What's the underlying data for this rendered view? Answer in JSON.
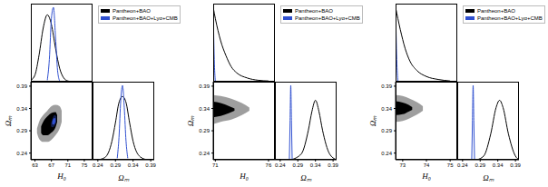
{
  "chart_data": [
    {
      "type": "corner",
      "legend": "upper right",
      "x_label": "H₀",
      "y_label": "Ωₘ",
      "xlim": [
        62,
        77
      ],
      "xticks": [
        63,
        67,
        71,
        75
      ],
      "ylim": [
        0.225,
        0.4
      ],
      "yticks": [
        0.24,
        0.29,
        0.34,
        0.39
      ],
      "series": [
        {
          "name": "Pantheon+BAO",
          "color": "#000000",
          "x_posterior": {
            "x": [
              62,
              63,
              64,
              65,
              66,
              67,
              68,
              69,
              70,
              71,
              72
            ],
            "values": [
              0.02,
              0.09,
              0.36,
              0.72,
              0.9,
              0.77,
              0.45,
              0.18,
              0.05,
              0.01,
              0
            ]
          },
          "y_posterior": {
            "x": [
              0.24,
              0.26,
              0.28,
              0.29,
              0.3,
              0.31,
              0.32,
              0.33,
              0.34,
              0.36,
              0.38
            ],
            "values": [
              0,
              0.03,
              0.25,
              0.5,
              0.77,
              0.85,
              0.77,
              0.5,
              0.25,
              0.04,
              0
            ]
          },
          "contours": [
            {
              "x": [
                63.5,
                64,
                65,
                66,
                67,
                68,
                69,
                69.5
              ],
              "low": [
                0.285,
                0.272,
                0.265,
                0.265,
                0.27,
                0.28,
                0.295,
                0.31
              ],
              "high": [
                0.295,
                0.31,
                0.325,
                0.335,
                0.345,
                0.348,
                0.345,
                0.335
              ]
            },
            {
              "x": [
                64.5,
                65,
                66,
                67,
                68,
                68.4
              ],
              "low": [
                0.285,
                0.28,
                0.28,
                0.286,
                0.298,
                0.31
              ],
              "high": [
                0.3,
                0.31,
                0.322,
                0.33,
                0.332,
                0.325
              ]
            }
          ]
        },
        {
          "name": "Pantheon+BAO+Lyα+CMB",
          "color": "#3050d0",
          "x_posterior": {
            "x": [
              66,
              66.5,
              67,
              67.5,
              68,
              68.5,
              69
            ],
            "values": [
              0.02,
              0.3,
              0.85,
              1.0,
              0.6,
              0.15,
              0.01
            ]
          },
          "y_posterior": {
            "x": [
              0.295,
              0.3,
              0.305,
              0.31,
              0.315,
              0.32,
              0.325
            ],
            "values": [
              0.02,
              0.3,
              0.8,
              1.0,
              0.7,
              0.25,
              0.02
            ]
          },
          "contours": [
            {
              "x": [
                66.9,
                67.3,
                67.8,
                68.2
              ],
              "low": [
                0.3,
                0.298,
                0.302,
                0.31
              ],
              "high": [
                0.305,
                0.318,
                0.325,
                0.322
              ]
            },
            {
              "x": [
                67.2,
                67.6,
                68.0
              ],
              "low": [
                0.305,
                0.304,
                0.31
              ],
              "high": [
                0.31,
                0.318,
                0.318
              ]
            }
          ]
        }
      ]
    },
    {
      "type": "corner",
      "legend": "upper right",
      "x_label": "H₀",
      "y_label": "Ωₘ",
      "xlim": [
        70.8,
        76.6
      ],
      "xticks": [
        71,
        76
      ],
      "ylim": [
        0.225,
        0.4
      ],
      "yticks": [
        0.24,
        0.29,
        0.34,
        0.39
      ],
      "series": [
        {
          "name": "Pantheon+BAO",
          "color": "#000000",
          "x_posterior": {
            "x": [
              70.8,
              71,
              71.5,
              72,
              72.5,
              73,
              74,
              75,
              76
            ],
            "values": [
              1.0,
              0.85,
              0.55,
              0.35,
              0.2,
              0.12,
              0.05,
              0.02,
              0.01
            ]
          },
          "y_posterior": {
            "x": [
              0.27,
              0.3,
              0.32,
              0.33,
              0.34,
              0.35,
              0.36,
              0.38,
              0.4
            ],
            "values": [
              0,
              0.08,
              0.4,
              0.65,
              0.8,
              0.65,
              0.4,
              0.08,
              0
            ]
          },
          "contours": [
            {
              "x": [
                70.8,
                71.5,
                72.5,
                73.5,
                74.2
              ],
              "low": [
                0.305,
                0.31,
                0.315,
                0.325,
                0.335
              ],
              "high": [
                0.37,
                0.368,
                0.362,
                0.352,
                0.342
              ]
            },
            {
              "x": [
                70.8,
                71.5,
                72.3,
                72.8
              ],
              "low": [
                0.32,
                0.323,
                0.33,
                0.335
              ],
              "high": [
                0.355,
                0.352,
                0.345,
                0.34
              ]
            }
          ]
        },
        {
          "name": "Pantheon+BAO+Lyα+CMB",
          "color": "#3050d0",
          "x_posterior": {
            "x": [
              70.8,
              70.9,
              71.0
            ],
            "values": [
              1.0,
              0.3,
              0
            ]
          },
          "y_posterior": {
            "x": [
              0.266,
              0.268,
              0.27,
              0.272,
              0.274
            ],
            "values": [
              0,
              0.5,
              1.0,
              0.5,
              0
            ]
          }
        }
      ]
    },
    {
      "type": "corner",
      "legend": "upper right",
      "x_label": "H₀",
      "y_label": "Ωₘ",
      "xlim": [
        72.7,
        75.3
      ],
      "xticks": [
        73,
        74,
        75
      ],
      "ylim": [
        0.225,
        0.4
      ],
      "yticks": [
        0.24,
        0.29,
        0.34,
        0.39
      ],
      "series": [
        {
          "name": "Pantheon+BAO",
          "color": "#000000",
          "x_posterior": {
            "x": [
              72.7,
              72.9,
              73.1,
              73.3,
              73.6,
              74,
              74.5,
              75
            ],
            "values": [
              1.0,
              0.7,
              0.45,
              0.28,
              0.15,
              0.07,
              0.03,
              0.01
            ]
          },
          "y_posterior": {
            "x": [
              0.28,
              0.3,
              0.32,
              0.335,
              0.345,
              0.355,
              0.37,
              0.39,
              0.4
            ],
            "values": [
              0,
              0.05,
              0.35,
              0.7,
              0.8,
              0.7,
              0.35,
              0.05,
              0
            ]
          },
          "contours": [
            {
              "x": [
                72.7,
                73.0,
                73.3,
                73.6,
                73.85
              ],
              "low": [
                0.31,
                0.312,
                0.318,
                0.326,
                0.335
              ],
              "high": [
                0.37,
                0.368,
                0.362,
                0.354,
                0.345
              ]
            },
            {
              "x": [
                72.7,
                73.0,
                73.25,
                73.4
              ],
              "low": [
                0.325,
                0.327,
                0.333,
                0.337
              ],
              "high": [
                0.356,
                0.353,
                0.348,
                0.343
              ]
            }
          ]
        },
        {
          "name": "Pantheon+BAO+Lyα+CMB",
          "color": "#3050d0",
          "x_posterior": {
            "x": [
              72.7,
              72.75,
              72.8
            ],
            "values": [
              1.0,
              0.3,
              0
            ]
          },
          "y_posterior": {
            "x": [
              0.266,
              0.268,
              0.27,
              0.272,
              0.274
            ],
            "values": [
              0,
              0.5,
              1.0,
              0.5,
              0
            ]
          }
        }
      ]
    }
  ]
}
